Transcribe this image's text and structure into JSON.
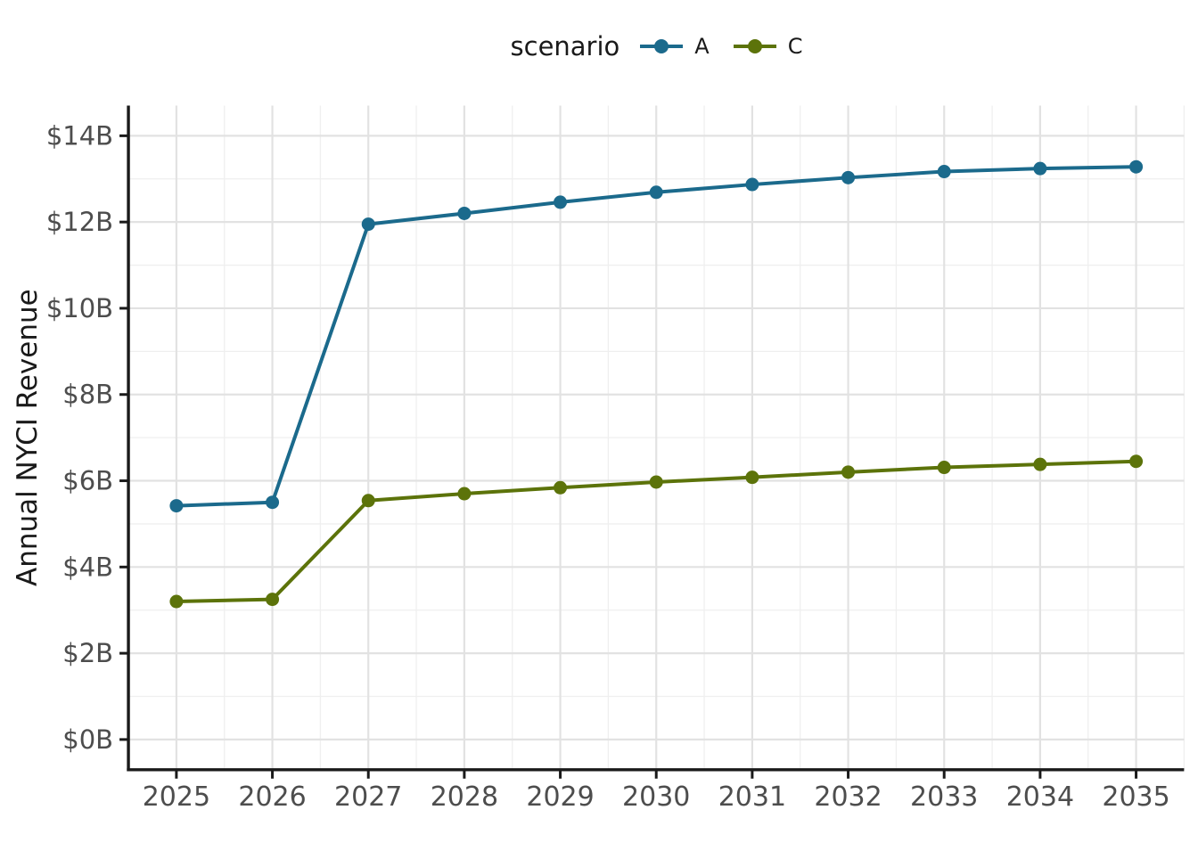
{
  "legend": {
    "title": "scenario",
    "position": "top"
  },
  "colors": {
    "background": "#ffffff",
    "grid_major": "#e2e2e2",
    "grid_minor": "#efefef",
    "axis_line": "#1a1a1a",
    "tick_label": "#4d4d4d",
    "axis_title": "#1a1a1a",
    "series_a": "#1b6a8c",
    "series_c": "#5c730a"
  },
  "chart_data": {
    "type": "line",
    "title": "",
    "xlabel": "",
    "ylabel": "Annual NYCI Revenue",
    "x": [
      2025,
      2026,
      2027,
      2028,
      2029,
      2030,
      2031,
      2032,
      2033,
      2034,
      2035
    ],
    "x_tick_labels": [
      "2025",
      "2026",
      "2027",
      "2028",
      "2029",
      "2030",
      "2031",
      "2032",
      "2033",
      "2034",
      "2035"
    ],
    "y_ticks": [
      0,
      2,
      4,
      6,
      8,
      10,
      12,
      14
    ],
    "y_tick_labels": [
      "$0B",
      "$2B",
      "$4B",
      "$6B",
      "$8B",
      "$10B",
      "$12B",
      "$14B"
    ],
    "xlim": [
      2024.5,
      2035.5
    ],
    "ylim": [
      0,
      14.7
    ],
    "grid": "major+minor",
    "legend_position": "top-center",
    "series": [
      {
        "name": "A",
        "color": "#1b6a8c",
        "values": [
          5.42,
          5.5,
          11.95,
          12.2,
          12.46,
          12.69,
          12.87,
          13.03,
          13.17,
          13.24,
          13.28
        ]
      },
      {
        "name": "C",
        "color": "#5c730a",
        "values": [
          3.2,
          3.25,
          5.54,
          5.7,
          5.84,
          5.97,
          6.08,
          6.2,
          6.31,
          6.38,
          6.45
        ]
      }
    ]
  }
}
